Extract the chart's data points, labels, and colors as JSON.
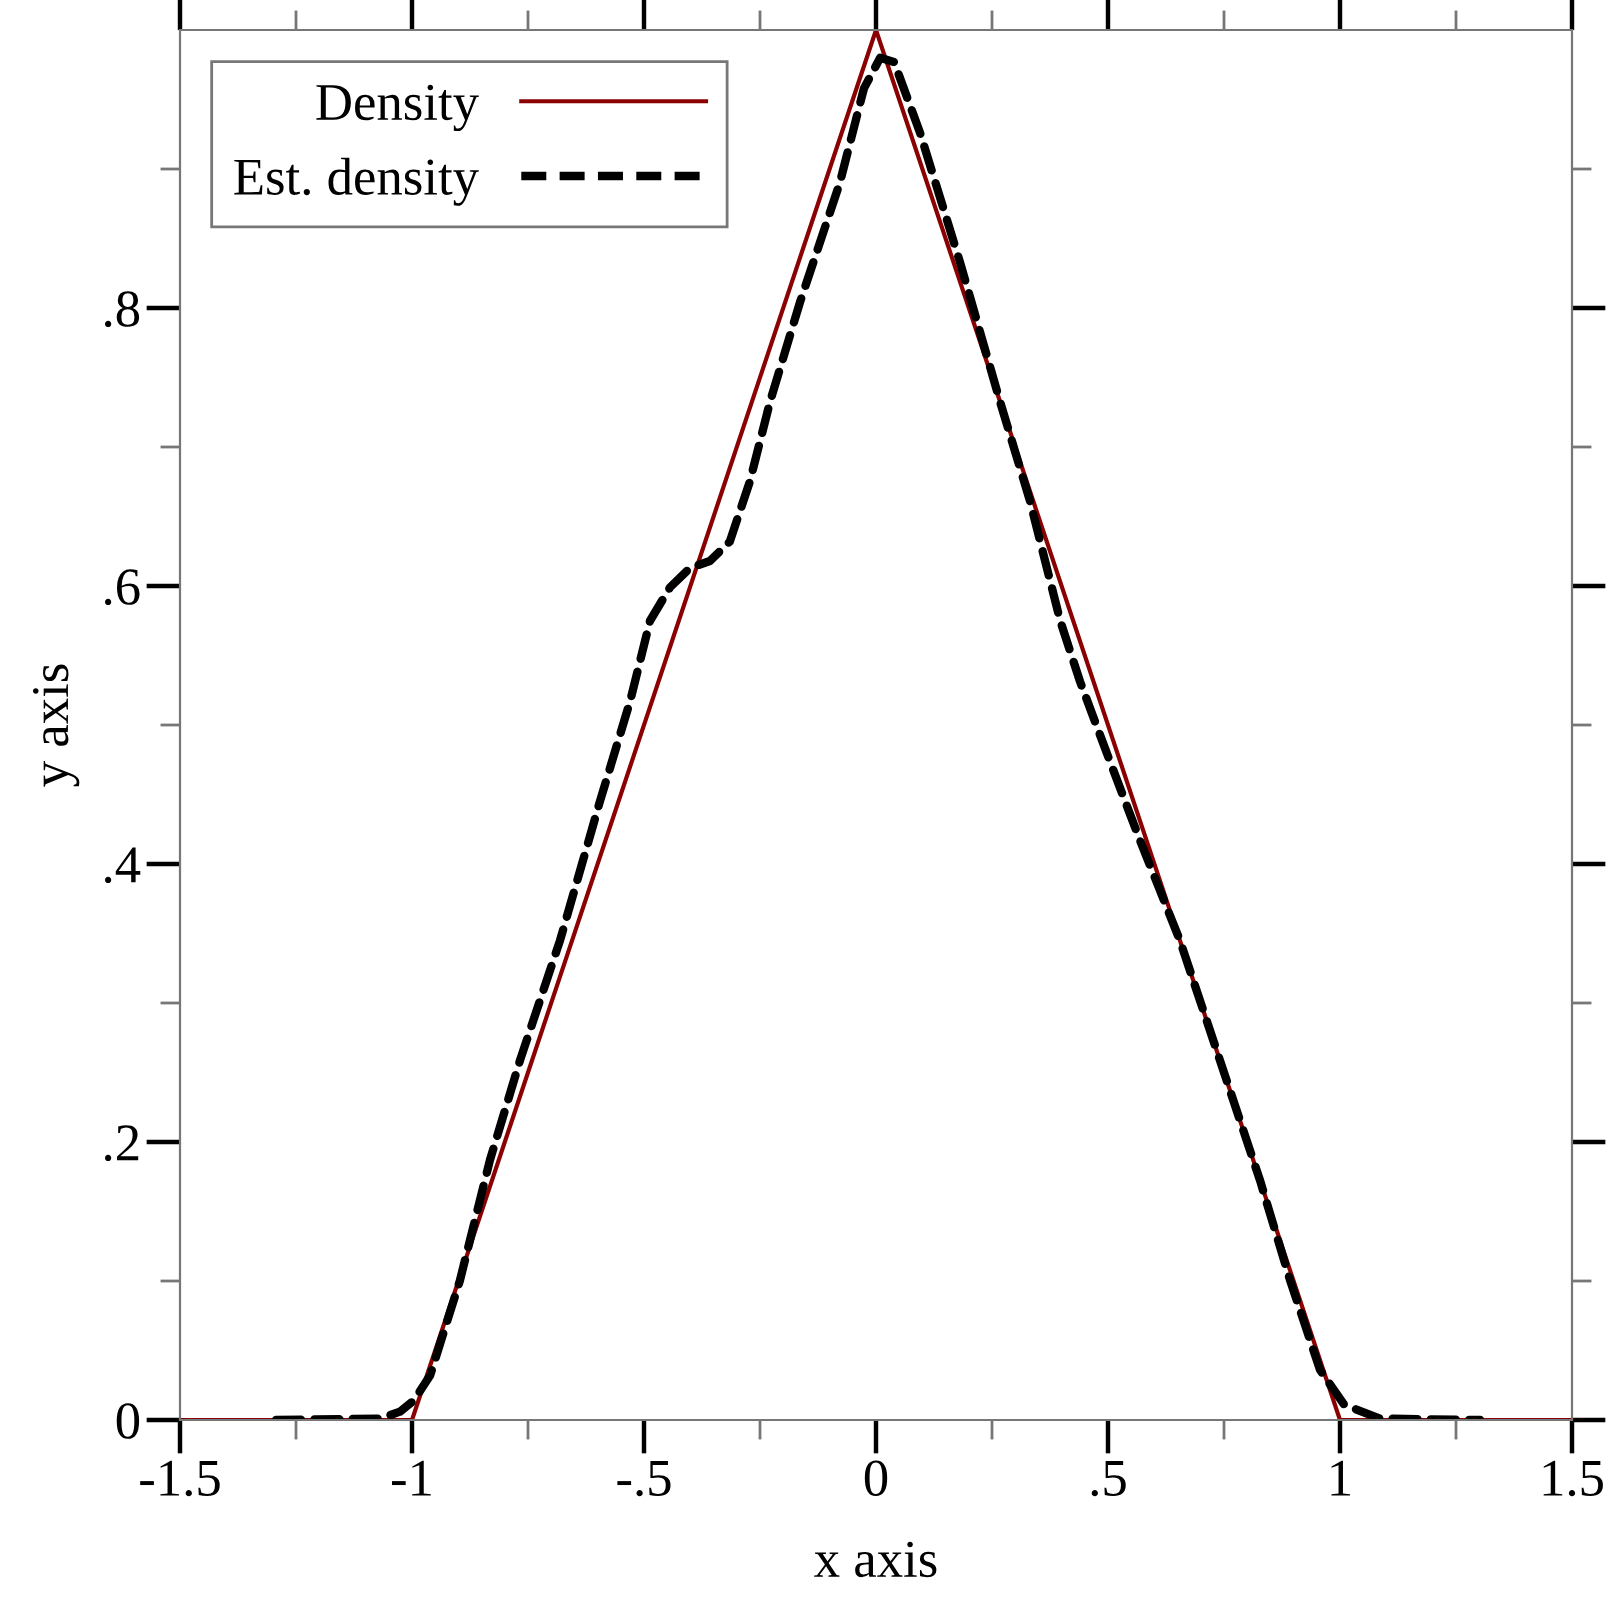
{
  "chart_data": {
    "type": "line",
    "xlabel": "x axis",
    "ylabel": "y axis",
    "xlim": [
      -1.5,
      1.5
    ],
    "ylim": [
      0,
      1
    ],
    "xticks": [
      -1.5,
      {
        "value": -1.25,
        "label": null
      },
      -1,
      {
        "value": -0.75,
        "label": null
      },
      {
        "value": -0.5,
        "label": "-.5"
      },
      {
        "value": -0.25,
        "label": null
      },
      0,
      {
        "value": 0.25,
        "label": null
      },
      {
        "value": 0.5,
        "label": ".5"
      },
      {
        "value": 0.75,
        "label": null
      },
      1,
      {
        "value": 1.25,
        "label": null
      },
      1.5
    ],
    "yticks": [
      0,
      {
        "value": 0.1,
        "label": null
      },
      {
        "value": 0.2,
        "label": ".2"
      },
      {
        "value": 0.3,
        "label": null
      },
      {
        "value": 0.4,
        "label": ".4"
      },
      {
        "value": 0.5,
        "label": null
      },
      {
        "value": 0.6,
        "label": ".6"
      },
      {
        "value": 0.7,
        "label": null
      },
      {
        "value": 0.8,
        "label": ".8"
      },
      {
        "value": 0.9,
        "label": null
      }
    ],
    "legend": "top left",
    "grid": false,
    "series": [
      {
        "name": "Density",
        "color": "#8b0000",
        "line_style": "solid",
        "x": [
          -1.5,
          -1,
          0,
          1,
          1.5
        ],
        "values": [
          0,
          0,
          1,
          0,
          0
        ]
      },
      {
        "name": "Est. density",
        "color": "#000000",
        "line_style": "dashed",
        "x": [
          -1.293,
          -1.069,
          -1.026,
          -0.996,
          -0.961,
          -0.897,
          -0.832,
          -0.767,
          -0.681,
          -0.595,
          -0.53,
          -0.487,
          -0.444,
          -0.401,
          -0.358,
          -0.315,
          -0.272,
          -0.228,
          -0.164,
          -0.078,
          -0.026,
          0.009,
          0.039,
          0.095,
          0.181,
          0.267,
          0.332,
          0.397,
          0.44,
          0.504,
          0.569,
          0.655,
          0.741,
          0.828,
          0.892,
          0.957,
          1.009,
          1.086,
          1.302
        ],
        "values": [
          0,
          0.001,
          0.006,
          0.014,
          0.032,
          0.1,
          0.187,
          0.259,
          0.345,
          0.445,
          0.517,
          0.575,
          0.599,
          0.613,
          0.618,
          0.632,
          0.675,
          0.733,
          0.804,
          0.89,
          0.958,
          0.98,
          0.977,
          0.926,
          0.833,
          0.733,
          0.661,
          0.575,
          0.531,
          0.474,
          0.417,
          0.345,
          0.259,
          0.172,
          0.101,
          0.036,
          0.011,
          0.001,
          0
        ]
      }
    ]
  }
}
